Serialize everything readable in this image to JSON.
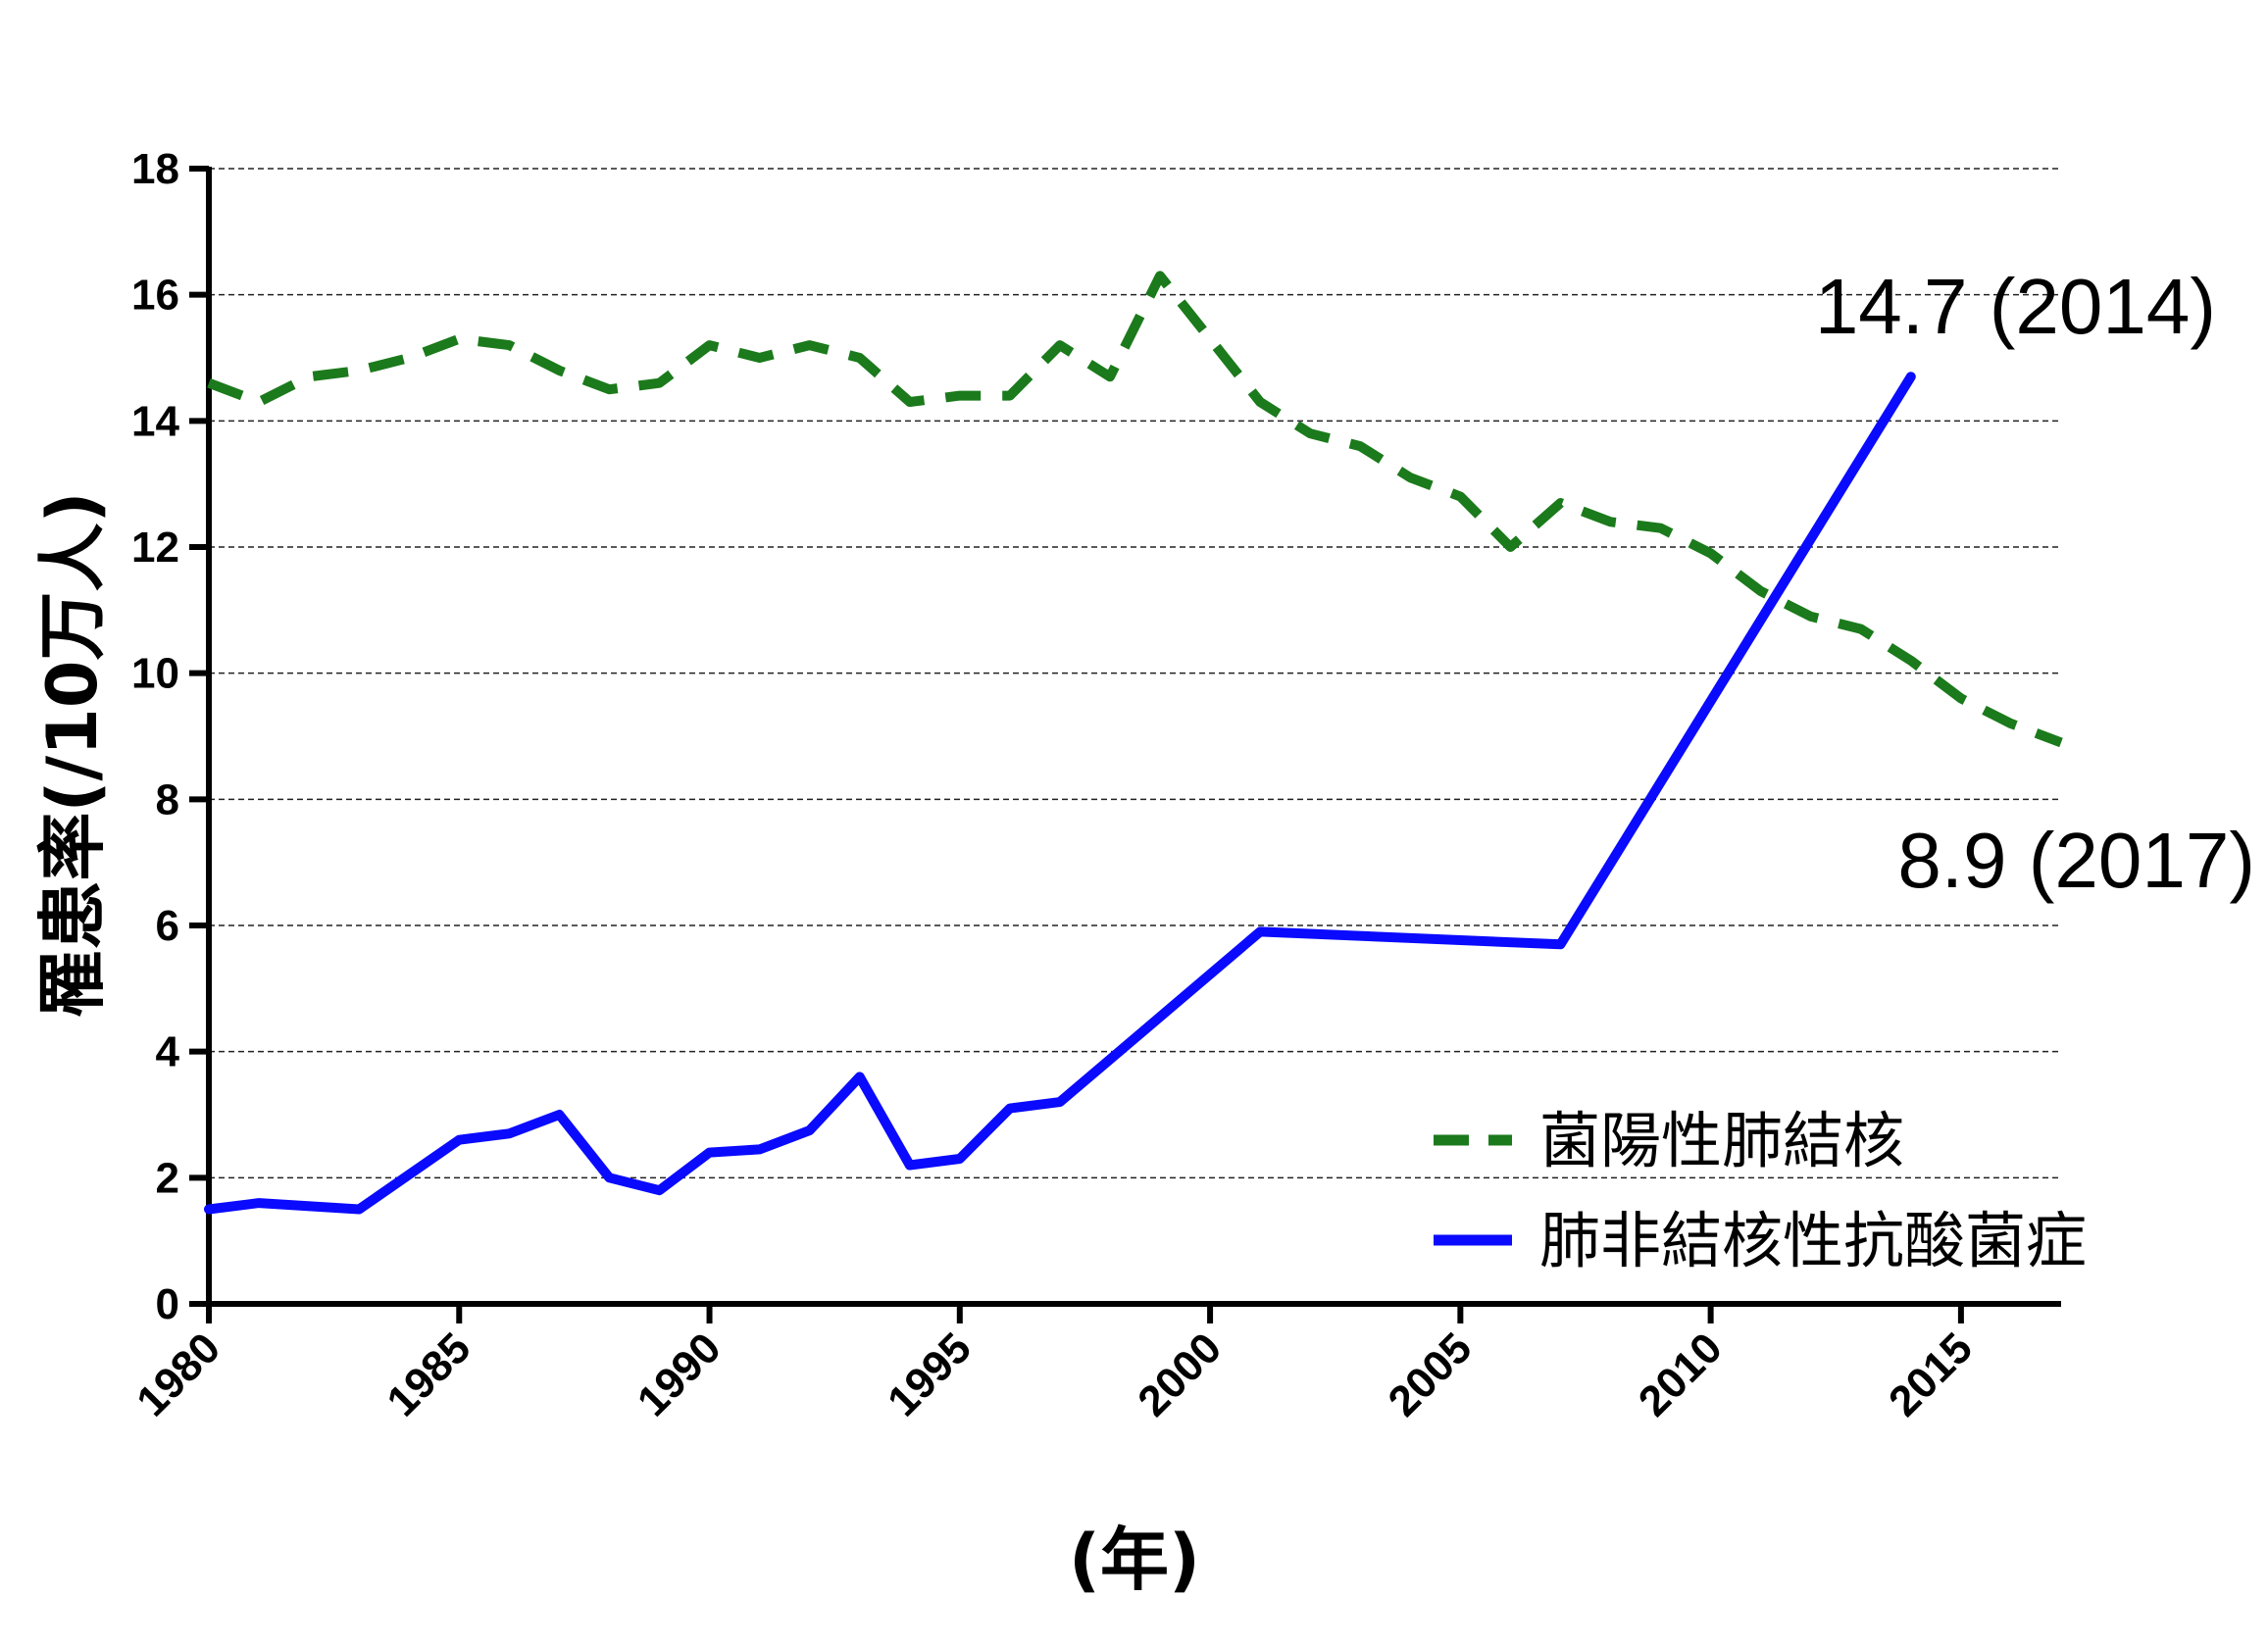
{
  "chart_data": {
    "type": "line",
    "xlabel": "(年)",
    "ylabel": "罹患率(/10万人)",
    "xlim": [
      1980,
      2017
    ],
    "ylim": [
      0,
      18
    ],
    "yticks": [
      0,
      2,
      4,
      6,
      8,
      10,
      12,
      14,
      16,
      18
    ],
    "xticks": [
      1980,
      1985,
      1990,
      1995,
      2000,
      2005,
      2010,
      2015
    ],
    "grid": "horizontal-dashed",
    "legend_position": "bottom-right",
    "series": [
      {
        "name": "菌陽性肺結核",
        "color": "#1b7a1b",
        "style": "dashed",
        "x": [
          1980,
          1981,
          1982,
          1983,
          1984,
          1985,
          1986,
          1987,
          1988,
          1989,
          1990,
          1991,
          1992,
          1993,
          1994,
          1995,
          1996,
          1997,
          1998,
          1999,
          2000,
          2001,
          2002,
          2003,
          2004,
          2005,
          2006,
          2007,
          2008,
          2009,
          2010,
          2011,
          2012,
          2013,
          2014,
          2015,
          2016,
          2017
        ],
        "values": [
          14.6,
          14.3,
          14.7,
          14.8,
          15.0,
          15.3,
          15.2,
          14.8,
          14.5,
          14.6,
          15.2,
          15.0,
          15.2,
          15.0,
          14.3,
          14.4,
          14.4,
          15.2,
          14.7,
          16.3,
          15.3,
          14.3,
          13.8,
          13.6,
          13.1,
          12.8,
          12.0,
          12.7,
          12.4,
          12.3,
          11.9,
          11.3,
          10.9,
          10.7,
          10.2,
          9.6,
          9.2,
          8.9
        ]
      },
      {
        "name": "肺非結核性抗酸菌症",
        "color": "#0a0aff",
        "style": "solid",
        "x": [
          1980,
          1981,
          1983,
          1985,
          1986,
          1987,
          1988,
          1989,
          1990,
          1991,
          1992,
          1993,
          1994,
          1995,
          1996,
          1997,
          2001,
          2007,
          2014
        ],
        "values": [
          1.5,
          1.6,
          1.5,
          2.6,
          2.7,
          3.0,
          2.0,
          1.8,
          2.4,
          2.45,
          2.75,
          3.6,
          2.2,
          2.3,
          3.1,
          3.2,
          5.9,
          5.7,
          14.7
        ]
      }
    ],
    "annotations": [
      {
        "text": "14.7 (2014)"
      },
      {
        "text": "8.9 (2017)"
      }
    ]
  }
}
